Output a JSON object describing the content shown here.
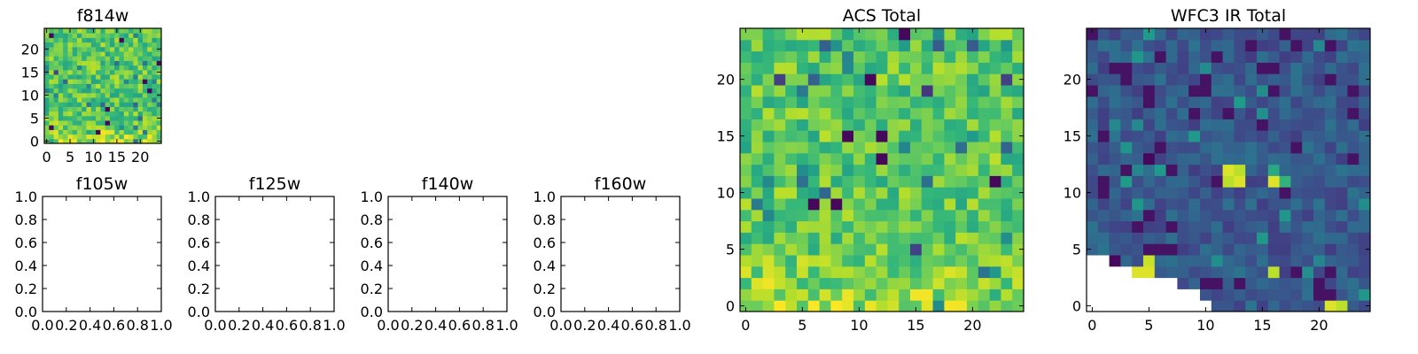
{
  "chart_data": [
    {
      "type": "heatmap",
      "title": "f814w",
      "xticks": [
        "0",
        "5",
        "10",
        "15",
        "20"
      ],
      "yticks": [
        "0",
        "5",
        "10",
        "15",
        "20"
      ],
      "xlim": [
        -0.5,
        24.5
      ],
      "ylim": [
        -0.5,
        24.5
      ],
      "grid_size": [
        25,
        25
      ],
      "colormap": "viridis",
      "value_range": [
        0,
        1
      ],
      "notes": "Noisy pixel map; values concentrate in the 0.55–0.95 range, with a brighter region near the bottom-left corner and a few very dark pixels."
    },
    {
      "type": "heatmap",
      "title": "f105w",
      "xticks": [
        "0.0",
        "0.2",
        "0.4",
        "0.6",
        "0.8",
        "1.0"
      ],
      "yticks": [
        "0.0",
        "0.2",
        "0.4",
        "0.6",
        "0.8",
        "1.0"
      ],
      "xlim": [
        0,
        1
      ],
      "ylim": [
        0,
        1
      ],
      "empty": true
    },
    {
      "type": "heatmap",
      "title": "f125w",
      "xticks": [
        "0.0",
        "0.2",
        "0.4",
        "0.6",
        "0.8",
        "1.0"
      ],
      "yticks": [
        "0.0",
        "0.2",
        "0.4",
        "0.6",
        "0.8",
        "1.0"
      ],
      "xlim": [
        0,
        1
      ],
      "ylim": [
        0,
        1
      ],
      "empty": true
    },
    {
      "type": "heatmap",
      "title": "f140w",
      "xticks": [
        "0.0",
        "0.2",
        "0.4",
        "0.6",
        "0.8",
        "1.0"
      ],
      "yticks": [
        "0.0",
        "0.2",
        "0.4",
        "0.6",
        "0.8",
        "1.0"
      ],
      "xlim": [
        0,
        1
      ],
      "ylim": [
        0,
        1
      ],
      "empty": true
    },
    {
      "type": "heatmap",
      "title": "f160w",
      "xticks": [
        "0.0",
        "0.2",
        "0.4",
        "0.6",
        "0.8",
        "1.0"
      ],
      "yticks": [
        "0.0",
        "0.2",
        "0.4",
        "0.6",
        "0.8",
        "1.0"
      ],
      "xlim": [
        0,
        1
      ],
      "ylim": [
        0,
        1
      ],
      "empty": true
    },
    {
      "type": "heatmap",
      "title": "ACS Total",
      "xticks": [
        "0",
        "5",
        "10",
        "15",
        "20"
      ],
      "yticks": [
        "0",
        "5",
        "10",
        "15",
        "20"
      ],
      "xlim": [
        -0.5,
        24.5
      ],
      "ylim": [
        -0.5,
        24.5
      ],
      "grid_size": [
        25,
        25
      ],
      "colormap": "viridis",
      "value_range": [
        0,
        1
      ],
      "notes": "Noisy pixel map mostly green/yellow-green; brightest (yellow) pixels concentrated in the bottom rows; a few dark (purple) pixels near the top-left and at (23, 0)."
    },
    {
      "type": "heatmap",
      "title": "WFC3 IR Total",
      "xticks": [
        "0",
        "5",
        "10",
        "15",
        "20"
      ],
      "yticks": [
        "0",
        "5",
        "10",
        "15",
        "20"
      ],
      "xlim": [
        -0.5,
        24.5
      ],
      "ylim": [
        -0.5,
        24.5
      ],
      "grid_size": [
        25,
        25
      ],
      "colormap": "viridis",
      "value_range": [
        0,
        1
      ],
      "notes": "Mostly dark blue map with bright spots near (12,11)-(13,12), (16,11), (16,3), (5,3) and (21,0); the lower-left corner region has no data (blank)."
    }
  ],
  "colors": {
    "viridis_dark": "#440154",
    "viridis_mid": "#21918c",
    "viridis_bright": "#fde725",
    "axes": "#000000",
    "background": "#ffffff"
  }
}
